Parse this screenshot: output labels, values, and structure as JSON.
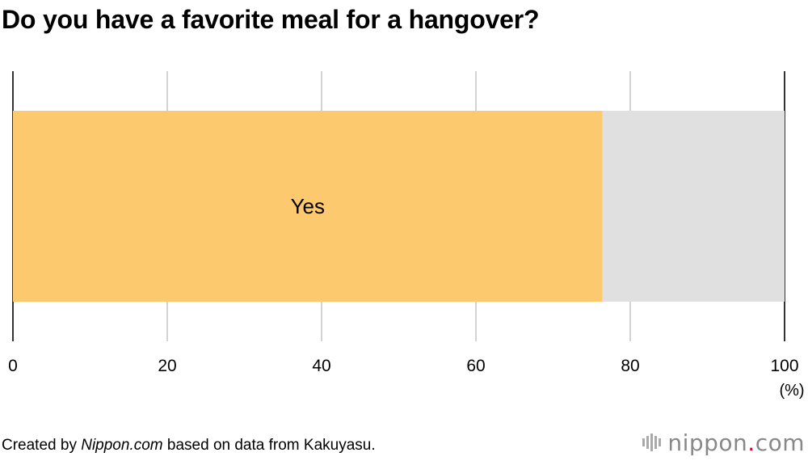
{
  "title": "Do you have a favorite meal for a hangover?",
  "chart_data": {
    "type": "bar",
    "orientation": "horizontal",
    "stacked": true,
    "series": [
      {
        "name": "Yes",
        "value": 76.4,
        "color": "#fcc96f"
      },
      {
        "name": "",
        "value": 23.6,
        "color": "#e0e0e0"
      }
    ],
    "xlim": [
      0,
      100
    ],
    "ticks": [
      0,
      20,
      40,
      60,
      80,
      100
    ],
    "unit_label": "(%)",
    "grid": true
  },
  "footer": {
    "prefix": "Created by ",
    "source_name": "Nippon.com",
    "suffix": " based on data from Kakuyasu."
  },
  "logo": {
    "name": "nippon",
    "dot": ".",
    "tld": "com"
  }
}
